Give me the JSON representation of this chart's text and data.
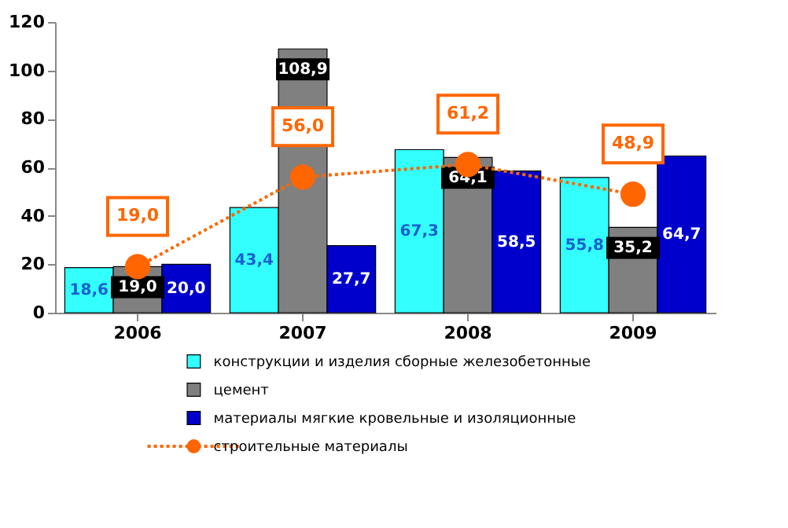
{
  "chart_data": {
    "type": "bar",
    "categories": [
      "2006",
      "2007",
      "2008",
      "2009"
    ],
    "series": [
      {
        "name": "конструкции и изделия сборные железобетонные",
        "color": "#33ffff",
        "values": [
          18.6,
          43.4,
          67.3,
          55.8
        ],
        "value_labels": [
          "18,6",
          "43,4",
          "67,3",
          "55,8"
        ]
      },
      {
        "name": "цемент",
        "color": "#808080",
        "values": [
          19.0,
          108.9,
          64.1,
          35.2
        ],
        "value_labels": [
          "19,0",
          "108,9",
          "64,1",
          "35,2"
        ]
      },
      {
        "name": "материалы мягкие кровельные и изоляционные",
        "color": "#0000cc",
        "values": [
          20.0,
          27.7,
          58.5,
          64.7
        ],
        "value_labels": [
          "20,0",
          "27,7",
          "58,5",
          "64,7"
        ]
      },
      {
        "name": "строительные материалы",
        "type": "line",
        "color": "#ff6600",
        "values": [
          19.0,
          56.0,
          61.2,
          48.9
        ],
        "value_labels": [
          "19,0",
          "56,0",
          "61,2",
          "48,9"
        ],
        "marker": "circle",
        "line_style": "dotted"
      }
    ],
    "ylim": [
      0,
      120
    ],
    "yticks": [
      0,
      20,
      40,
      60,
      80,
      100,
      120
    ],
    "data_labels": true,
    "grid": false,
    "legend": "bottom"
  }
}
